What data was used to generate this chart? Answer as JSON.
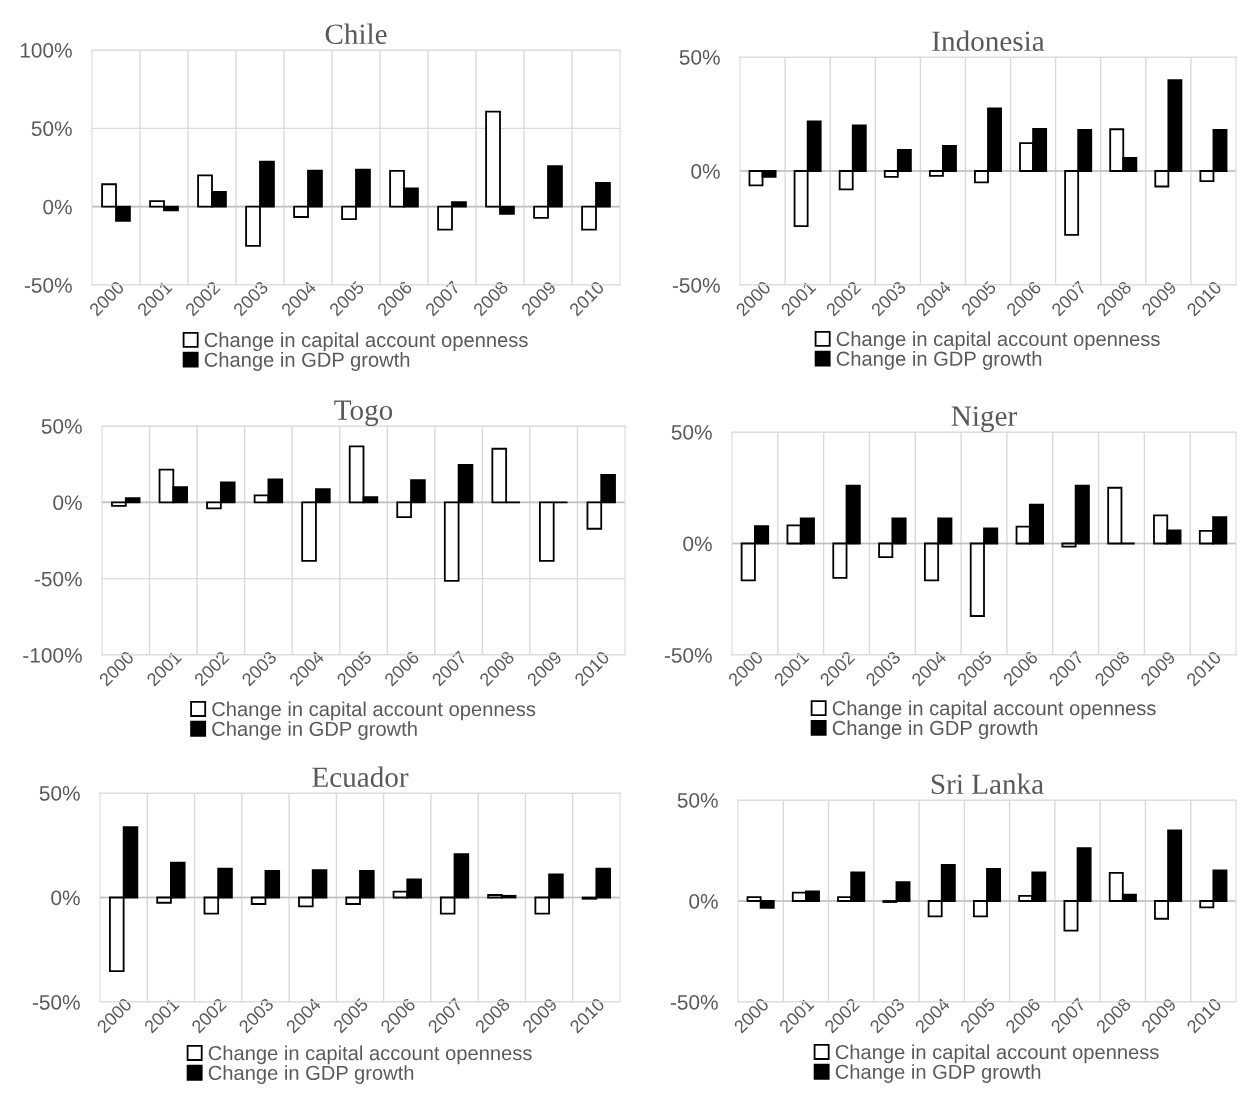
{
  "chart_data": [
    {
      "type": "bar",
      "title": "Chile",
      "categories": [
        "2000",
        "2001",
        "2002",
        "2003",
        "2004",
        "2005",
        "2006",
        "2007",
        "2008",
        "2009",
        "2010"
      ],
      "ylim": [
        -50,
        100
      ],
      "yticks": [
        {
          "value": -50,
          "label": "-50%"
        },
        {
          "value": 0,
          "label": "0%"
        },
        {
          "value": 50,
          "label": "50%"
        },
        {
          "value": 100,
          "label": "100%"
        }
      ],
      "grid": true,
      "legend": "bottom",
      "series": [
        {
          "name": "Change in capital account openness",
          "color": "#ffffff",
          "values": [
            14.3,
            3.5,
            20,
            -25,
            -6.6,
            -8,
            22.8,
            -14.7,
            60.7,
            -7.2,
            -14.7
          ]
        },
        {
          "name": "Change in GDP growth",
          "color": "#000000",
          "values": [
            -9,
            -2.4,
            9.4,
            28.7,
            23,
            23.7,
            11.6,
            2.9,
            -4.6,
            25.9,
            15.1
          ]
        }
      ]
    },
    {
      "type": "bar",
      "title": "Indonesia",
      "categories": [
        "2000",
        "2001",
        "2002",
        "2003",
        "2004",
        "2005",
        "2006",
        "2007",
        "2008",
        "2009",
        "2010"
      ],
      "ylim": [
        -50,
        50
      ],
      "yticks": [
        {
          "value": -50,
          "label": "-50%"
        },
        {
          "value": 0,
          "label": "0%"
        },
        {
          "value": 50,
          "label": "50%"
        }
      ],
      "grid": true,
      "legend": "bottom",
      "series": [
        {
          "name": "Change in capital account openness",
          "color": "#ffffff",
          "values": [
            -6.3,
            -24.2,
            -8.1,
            -2.6,
            -2.1,
            -5,
            12.2,
            -28,
            18.3,
            -6.8,
            -4.4
          ]
        },
        {
          "name": "Change in GDP growth",
          "color": "#000000",
          "values": [
            -2.6,
            21.8,
            20,
            9.2,
            11,
            27.5,
            18.5,
            18,
            5.7,
            39.8,
            18
          ]
        }
      ]
    },
    {
      "type": "bar",
      "title": "Togo",
      "categories": [
        "2000",
        "2001",
        "2002",
        "2003",
        "2004",
        "2005",
        "2006",
        "2007",
        "2008",
        "2009",
        "2010"
      ],
      "ylim": [
        -100,
        50
      ],
      "yticks": [
        {
          "value": -100,
          "label": "-100%"
        },
        {
          "value": -50,
          "label": "-50%"
        },
        {
          "value": 0,
          "label": "0%"
        },
        {
          "value": 50,
          "label": "50%"
        }
      ],
      "grid": true,
      "legend": "bottom",
      "series": [
        {
          "name": "Change in capital account openness",
          "color": "#ffffff",
          "values": [
            -2.3,
            21.4,
            -4,
            4.5,
            -38.3,
            36.7,
            -9.7,
            -51.4,
            35.1,
            -38.3,
            -17.3
          ]
        },
        {
          "name": "Change in GDP growth",
          "color": "#000000",
          "values": [
            2.7,
            9.9,
            13,
            15,
            8.6,
            3.4,
            14.6,
            24.5,
            0,
            0,
            18
          ]
        }
      ]
    },
    {
      "type": "bar",
      "title": "Niger",
      "categories": [
        "2000",
        "2001",
        "2002",
        "2003",
        "2004",
        "2005",
        "2006",
        "2007",
        "2008",
        "2009",
        "2010"
      ],
      "ylim": [
        -50,
        50
      ],
      "yticks": [
        {
          "value": -50,
          "label": "-50%"
        },
        {
          "value": 0,
          "label": "0%"
        },
        {
          "value": 50,
          "label": "50%"
        }
      ],
      "grid": true,
      "legend": "bottom",
      "series": [
        {
          "name": "Change in capital account openness",
          "color": "#ffffff",
          "values": [
            -16.5,
            8.1,
            -15.4,
            -6.1,
            -16.5,
            -32.5,
            7.6,
            -1.4,
            25,
            12.6,
            5.7
          ]
        },
        {
          "name": "Change in GDP growth",
          "color": "#000000",
          "values": [
            7.8,
            11.3,
            25.9,
            11.3,
            11.3,
            6.8,
            17.4,
            25.9,
            0,
            5.9,
            11.8
          ]
        }
      ]
    },
    {
      "type": "bar",
      "title": "Ecuador",
      "categories": [
        "2000",
        "2001",
        "2002",
        "2003",
        "2004",
        "2005",
        "2006",
        "2007",
        "2008",
        "2009",
        "2010"
      ],
      "ylim": [
        -50,
        50
      ],
      "yticks": [
        {
          "value": -50,
          "label": "-50%"
        },
        {
          "value": 0,
          "label": "0%"
        },
        {
          "value": 50,
          "label": "50%"
        }
      ],
      "grid": true,
      "legend": "bottom",
      "series": [
        {
          "name": "Change in capital account openness",
          "color": "#ffffff",
          "values": [
            -35.2,
            -2.5,
            -7.7,
            -3.1,
            -4.2,
            -3.1,
            2.8,
            -7.7,
            1.2,
            -7.7,
            -0.6
          ]
        },
        {
          "name": "Change in GDP growth",
          "color": "#000000",
          "values": [
            33.6,
            16.7,
            13.8,
            12.7,
            13.1,
            12.7,
            8.6,
            20.8,
            0.8,
            11.1,
            13.8
          ]
        }
      ]
    },
    {
      "type": "bar",
      "title": "Sri Lanka",
      "categories": [
        "2000",
        "2001",
        "2002",
        "2003",
        "2004",
        "2005",
        "2006",
        "2007",
        "2008",
        "2009",
        "2010"
      ],
      "ylim": [
        -50,
        50
      ],
      "yticks": [
        {
          "value": -50,
          "label": "-50%"
        },
        {
          "value": 0,
          "label": "0%"
        },
        {
          "value": 50,
          "label": "50%"
        }
      ],
      "grid": true,
      "legend": "bottom",
      "series": [
        {
          "name": "Change in capital account openness",
          "color": "#ffffff",
          "values": [
            1.9,
            4.1,
            1.9,
            -0.5,
            -7.6,
            -7.6,
            2.5,
            -14.7,
            13.9,
            -8.8,
            -3.2
          ]
        },
        {
          "name": "Change in GDP growth",
          "color": "#000000",
          "values": [
            -3.4,
            4.7,
            14.2,
            9.3,
            17.9,
            15.9,
            14.2,
            26.2,
            3.2,
            35,
            15.2
          ]
        }
      ]
    }
  ]
}
